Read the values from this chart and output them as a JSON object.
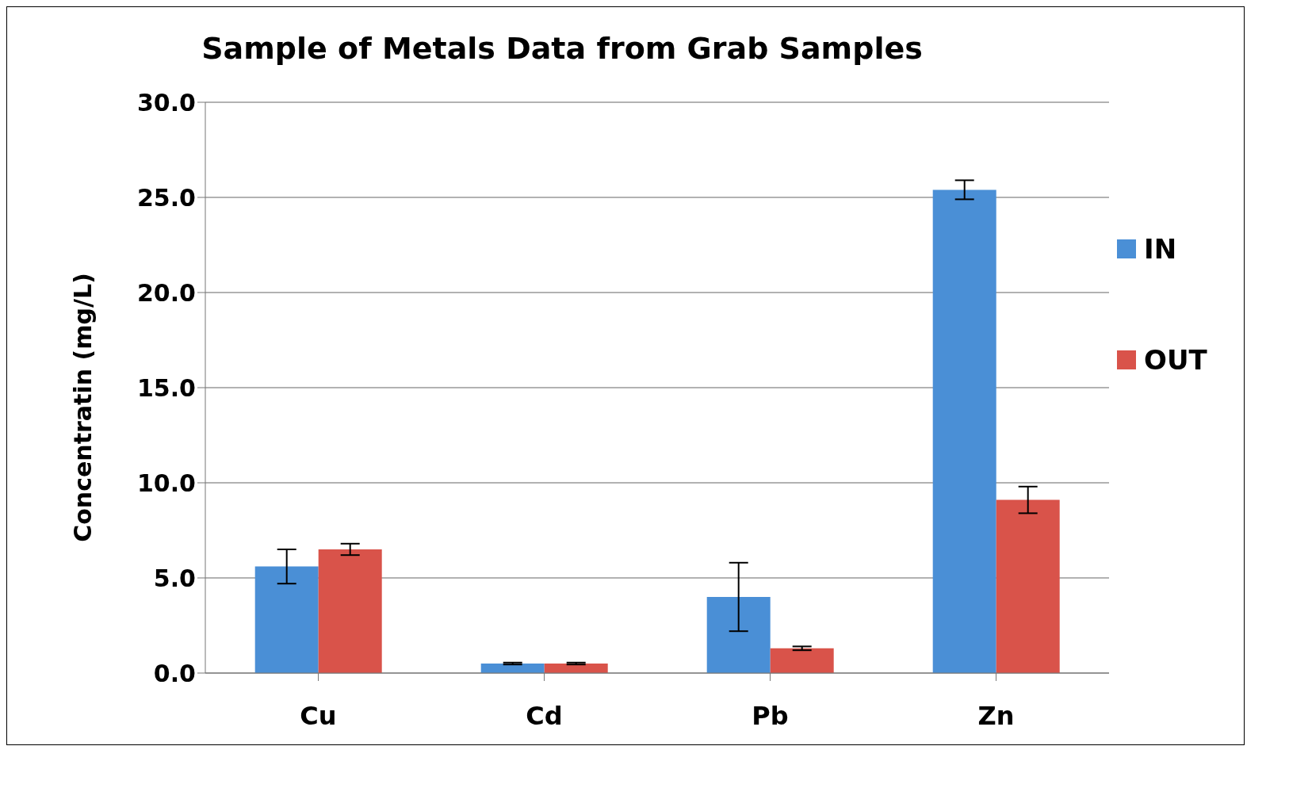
{
  "chart_data": {
    "type": "bar",
    "title": "Sample of Metals Data from Grab Samples",
    "ylabel": "Concentratin (mg/L)",
    "categories": [
      "Cu",
      "Cd",
      "Pb",
      "Zn"
    ],
    "series": [
      {
        "name": "IN",
        "color": "#4a8fd6",
        "values": [
          5.6,
          0.5,
          4.0,
          25.4
        ],
        "errors": [
          0.9,
          0.05,
          1.8,
          0.5
        ]
      },
      {
        "name": "OUT",
        "color": "#d9534a",
        "values": [
          6.5,
          0.5,
          1.3,
          9.1
        ],
        "errors": [
          0.3,
          0.05,
          0.1,
          0.7
        ]
      }
    ],
    "ylim": [
      0,
      30
    ],
    "yticks": [
      {
        "value": 0,
        "label": "0.0"
      },
      {
        "value": 5,
        "label": "5.0"
      },
      {
        "value": 10,
        "label": "10.0"
      },
      {
        "value": 15,
        "label": "15.0"
      },
      {
        "value": 20,
        "label": "20.0"
      },
      {
        "value": 25,
        "label": "25.0"
      },
      {
        "value": 30,
        "label": "30.0"
      }
    ],
    "grid": "y",
    "legend": "right"
  }
}
